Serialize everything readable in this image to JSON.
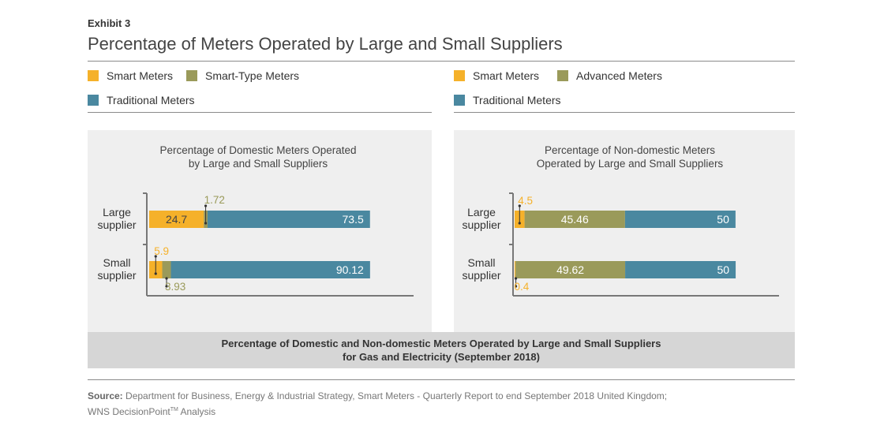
{
  "exhibit": "Exhibit 3",
  "title": "Percentage of Meters Operated by Large and Small Suppliers",
  "legend_left": [
    {
      "label": "Smart Meters",
      "color": "#f5b12a"
    },
    {
      "label": "Smart-Type Meters",
      "color": "#9a9a5a"
    },
    {
      "label": "Traditional Meters",
      "color": "#4a88a0"
    }
  ],
  "legend_right": [
    {
      "label": "Smart Meters",
      "color": "#f5b12a"
    },
    {
      "label": "Advanced Meters",
      "color": "#9a9a5a"
    },
    {
      "label": "Traditional Meters",
      "color": "#4a88a0"
    }
  ],
  "caption": {
    "line1": "Percentage of Domestic and Non-domestic Meters Operated by Large and Small Suppliers",
    "line2": "for Gas and Electricity (September 2018)"
  },
  "source": {
    "label": "Source:",
    "text": "Department for Business, Energy & Industrial Strategy, Smart Meters - Quarterly Report to end September 2018 United Kingdom;",
    "line2_pre": "WNS DecisionPoint",
    "line2_tm": "TM",
    "line2_post": " Analysis"
  },
  "chart_data": [
    {
      "type": "bar",
      "orientation": "horizontal",
      "stacked": true,
      "title": "Percentage of Domestic Meters Operated by Large and Small Suppliers",
      "title_lines": [
        "Percentage of Domestic Meters Operated",
        "by Large and Small Suppliers"
      ],
      "categories": [
        [
          "Large",
          "supplier"
        ],
        [
          "Small",
          "supplier"
        ]
      ],
      "series": [
        {
          "name": "Smart Meters",
          "color": "#f5b12a",
          "values": [
            24.7,
            5.9
          ]
        },
        {
          "name": "Smart-Type Meters",
          "color": "#9a9a5a",
          "values": [
            1.72,
            3.93
          ]
        },
        {
          "name": "Traditional Meters",
          "color": "#4a88a0",
          "values": [
            73.5,
            90.12
          ]
        }
      ],
      "xlim": [
        0,
        100
      ]
    },
    {
      "type": "bar",
      "orientation": "horizontal",
      "stacked": true,
      "title": "Percentage of Non-domestic Meters Operated by Large and Small Suppliers",
      "title_lines": [
        "Percentage of Non-domestic Meters",
        "Operated by Large and Small Suppliers"
      ],
      "categories": [
        [
          "Large",
          "supplier"
        ],
        [
          "Small",
          "supplier"
        ]
      ],
      "series": [
        {
          "name": "Smart Meters",
          "color": "#f5b12a",
          "values": [
            4.5,
            0.4
          ]
        },
        {
          "name": "Advanced Meters",
          "color": "#9a9a5a",
          "values": [
            45.46,
            49.62
          ]
        },
        {
          "name": "Traditional Meters",
          "color": "#4a88a0",
          "values": [
            50,
            50
          ]
        }
      ],
      "xlim": [
        0,
        100
      ]
    }
  ]
}
